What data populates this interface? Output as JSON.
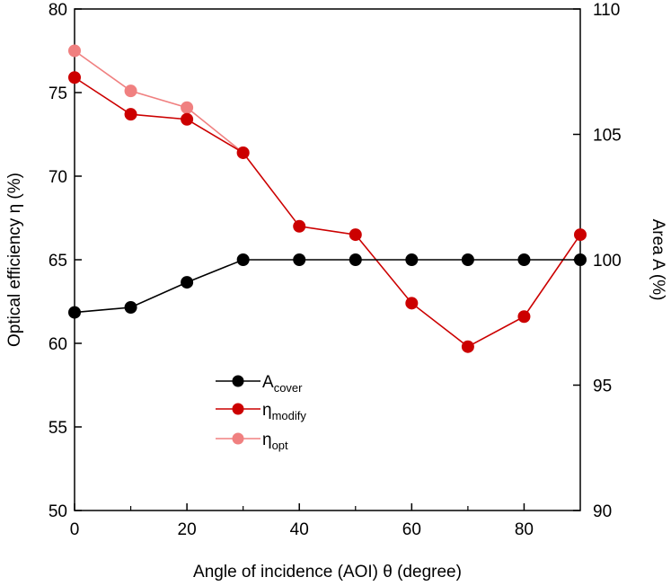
{
  "chart_data": {
    "type": "line",
    "xlabel": "Angle of incidence (AOI) θ (degree)",
    "ylabel": "Optical efficiency η (%)",
    "y2label": "Area A (%)",
    "xlim": [
      0,
      90
    ],
    "ylim": [
      50,
      80
    ],
    "y2lim": [
      90,
      110
    ],
    "x_ticks": [
      "0",
      "20",
      "40",
      "60",
      "80"
    ],
    "y_ticks": [
      "50",
      "55",
      "60",
      "65",
      "70",
      "75",
      "80"
    ],
    "y2_ticks": [
      "90",
      "95",
      "100",
      "105",
      "110"
    ],
    "grid": false,
    "legend_position": "center-left",
    "x": [
      0,
      10,
      20,
      30,
      40,
      50,
      60,
      70,
      80,
      90
    ],
    "series": [
      {
        "name_main": "A",
        "name_sub": "cover",
        "axis": "right",
        "color": "#000000",
        "values": [
          97.9,
          98.1,
          99.1,
          100,
          100,
          100,
          100,
          100,
          100,
          100
        ]
      },
      {
        "name_main": "η",
        "name_sub": "modify",
        "axis": "left",
        "color": "#cc0000",
        "values": [
          75.9,
          73.7,
          73.4,
          71.4,
          67.0,
          66.5,
          62.4,
          59.8,
          61.6,
          66.5
        ]
      },
      {
        "name_main": "η",
        "name_sub": "opt",
        "axis": "left",
        "color": "#f08080",
        "values": [
          77.5,
          75.1,
          74.1,
          71.4,
          null,
          null,
          null,
          null,
          null,
          null
        ]
      }
    ]
  }
}
